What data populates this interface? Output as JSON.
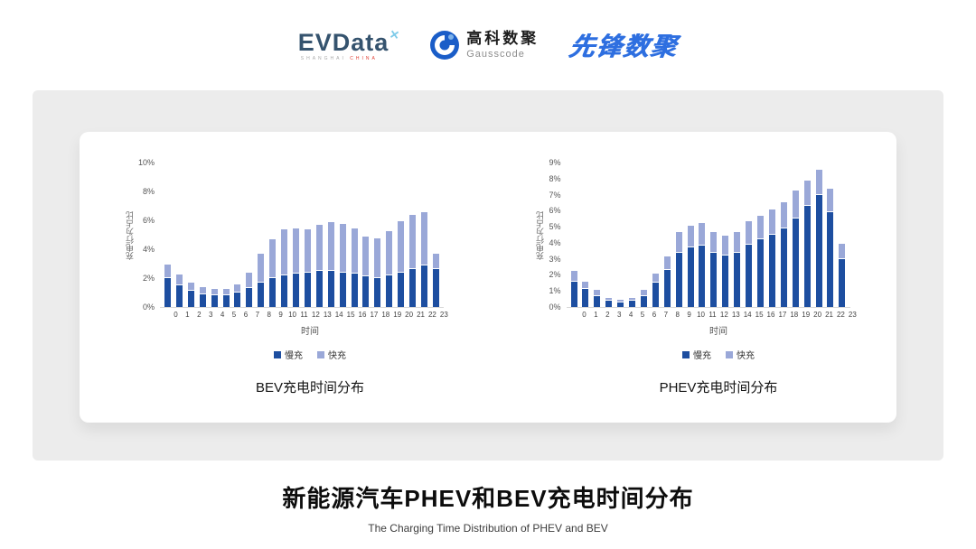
{
  "header": {
    "evdata": {
      "name": "EVData",
      "mark": "✕",
      "sub_left": "SHANGHAI",
      "sub_right": "CHINA"
    },
    "gausscode": {
      "cn": "高科数聚",
      "en": "Gausscode"
    },
    "xianfeng": "先锋数聚"
  },
  "footer": {
    "title": "新能源汽车PHEV和BEV充电时间分布",
    "subtitle": "The Charging Time Distribution of PHEV and BEV"
  },
  "colors": {
    "slow": "#1d4ea0",
    "fast": "#9aa8d8",
    "panel": "#ececec"
  },
  "chart_data": [
    {
      "type": "bar",
      "stacked": true,
      "title": "BEV充电时间分布",
      "xlabel": "时间",
      "ylabel": "充电行为占比",
      "ymax": 10,
      "yticks": [
        "0%",
        "2%",
        "4%",
        "6%",
        "8%",
        "10%"
      ],
      "categories": [
        0,
        1,
        2,
        3,
        4,
        5,
        6,
        7,
        8,
        9,
        10,
        11,
        12,
        13,
        14,
        15,
        16,
        17,
        18,
        19,
        20,
        21,
        22,
        23
      ],
      "legend_position": "bottom",
      "grid": false,
      "series": [
        {
          "name": "慢充",
          "color": "#1d4ea0",
          "values": [
            2.0,
            1.5,
            1.1,
            0.9,
            0.8,
            0.8,
            1.0,
            1.3,
            1.7,
            2.0,
            2.2,
            2.3,
            2.4,
            2.5,
            2.5,
            2.4,
            2.3,
            2.1,
            2.0,
            2.2,
            2.4,
            2.6,
            2.9,
            2.6
          ]
        },
        {
          "name": "快充",
          "color": "#9aa8d8",
          "values": [
            0.9,
            0.7,
            0.5,
            0.4,
            0.4,
            0.4,
            0.5,
            1.0,
            1.9,
            2.6,
            3.1,
            3.1,
            2.9,
            3.1,
            3.3,
            3.3,
            3.1,
            2.7,
            2.7,
            3.0,
            3.5,
            3.7,
            3.6,
            1.0
          ]
        }
      ]
    },
    {
      "type": "bar",
      "stacked": true,
      "title": "PHEV充电时间分布",
      "xlabel": "时间",
      "ylabel": "充电行为占比",
      "ymax": 9,
      "yticks": [
        "0%",
        "1%",
        "2%",
        "3%",
        "4%",
        "5%",
        "6%",
        "7%",
        "8%",
        "9%"
      ],
      "categories": [
        0,
        1,
        2,
        3,
        4,
        5,
        6,
        7,
        8,
        9,
        10,
        11,
        12,
        13,
        14,
        15,
        16,
        17,
        18,
        19,
        20,
        21,
        22,
        23
      ],
      "legend_position": "bottom",
      "grid": false,
      "series": [
        {
          "name": "慢充",
          "color": "#1d4ea0",
          "values": [
            1.6,
            1.1,
            0.7,
            0.4,
            0.3,
            0.4,
            0.7,
            1.5,
            2.3,
            3.4,
            3.7,
            3.8,
            3.4,
            3.2,
            3.4,
            3.9,
            4.2,
            4.5,
            4.9,
            5.5,
            6.3,
            7.0,
            5.9,
            3.0
          ]
        },
        {
          "name": "快充",
          "color": "#9aa8d8",
          "values": [
            0.6,
            0.4,
            0.3,
            0.1,
            0.1,
            0.1,
            0.3,
            0.5,
            0.8,
            1.2,
            1.3,
            1.4,
            1.2,
            1.2,
            1.2,
            1.4,
            1.4,
            1.5,
            1.6,
            1.7,
            1.5,
            1.5,
            1.4,
            0.9
          ]
        }
      ]
    }
  ]
}
